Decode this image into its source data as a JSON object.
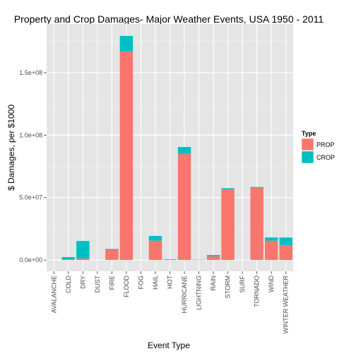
{
  "chart_data": {
    "type": "bar",
    "stacked": true,
    "title": "Property and Crop Damages- Major Weather Events, USA 1950 - 2011",
    "xlabel": "Event Type",
    "ylabel": "$ Damages, per $1000",
    "ylim": [
      -9000000,
      189000000
    ],
    "y_ticks": [
      {
        "value": 0,
        "label": "0.0e+00"
      },
      {
        "value": 50000000,
        "label": "5.0e+07"
      },
      {
        "value": 100000000,
        "label": "1.0e+08"
      },
      {
        "value": 150000000,
        "label": "1.5e+08"
      }
    ],
    "categories": [
      "AVALANCHE",
      "COLD",
      "DRY",
      "DUST",
      "FIRE",
      "FLOOD",
      "FOG",
      "HAIL",
      "HOT",
      "HURRICANE",
      "LIGHTNING",
      "RAIN",
      "STORM",
      "SURF",
      "TORNADO",
      "WIND",
      "WINTER WEATHER"
    ],
    "series": [
      {
        "name": "PROP",
        "color": "#F8766D",
        "values": [
          0,
          300000,
          1200000,
          0,
          8000000,
          167000000,
          0,
          15500000,
          0,
          85000000,
          300000,
          3000000,
          56500000,
          0,
          58000000,
          15500000,
          12000000
        ]
      },
      {
        "name": "CROP",
        "color": "#00BFC4",
        "values": [
          0,
          2000000,
          14000000,
          0,
          800000,
          12500000,
          0,
          3800000,
          500000,
          5500000,
          0,
          1000000,
          1000000,
          0,
          500000,
          2500000,
          6000000
        ]
      }
    ],
    "grid": true,
    "legend": {
      "title": "Type",
      "position": "right"
    }
  }
}
